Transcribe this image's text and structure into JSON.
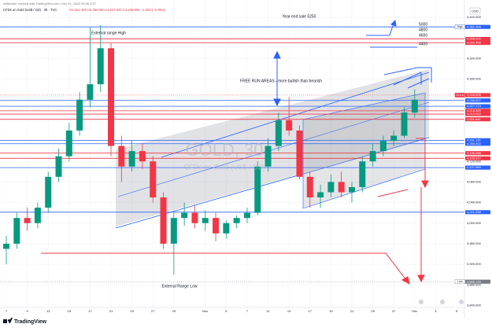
{
  "chart_data": {
    "type": "candlestick",
    "header": "szflarbahr created with TradingView.com, Dec 01, 2025 09:38 UTC",
    "symbol_line": "CFDs on Gold (US$ / OZ) · 30 · TVC",
    "ohlc_line": "O4,251.400 H4,256.050 L4,247.830 C4,248.895 −2.564 (−0.06%)",
    "watermark": "GOLD, 30",
    "watermark_sub": "CFDs on Gold (US$ / OZ)",
    "currency": "USD",
    "brand": "TradingView",
    "annotations": {
      "year_end": "Year end sale 5250",
      "t5000": "5000",
      "t4800": "4800",
      "t4600": "4600",
      "t4400": "4400",
      "range_high": "External range High",
      "free_run": "FREE RUN AREAS - more bullish than bearish",
      "range_low": "External Range Low"
    },
    "categories": [
      "7",
      null,
      "9",
      null,
      "13",
      null,
      "15",
      null,
      "17",
      null,
      "21",
      null,
      "23",
      null,
      "27",
      null,
      "29",
      null,
      null,
      "Nov",
      null,
      "5",
      null,
      "7",
      null,
      "11",
      null,
      "13",
      null,
      "17",
      null,
      "19",
      null,
      "21",
      null,
      "25",
      null,
      "27",
      null,
      "Dec",
      null,
      "3",
      null,
      "5"
    ],
    "open": [
      3950,
      3960,
      4010,
      4000,
      4030,
      4090,
      4130,
      4180,
      4240,
      4270,
      4340,
      4150,
      4110,
      4140,
      4120,
      4050,
      3960,
      4010,
      4020,
      4000,
      4010,
      3980,
      4000,
      4010,
      4020,
      4110,
      4150,
      4200,
      4180,
      4090,
      4050,
      4060,
      4080,
      4060,
      4070,
      4120,
      4140,
      4160,
      4170,
      4215,
      null,
      null,
      null,
      null
    ],
    "high": [
      3975,
      4020,
      4030,
      4040,
      4100,
      4145,
      4195,
      4255,
      4380,
      4385,
      4350,
      4170,
      4160,
      4155,
      4130,
      4060,
      4020,
      4040,
      4035,
      4025,
      4020,
      4005,
      4015,
      4030,
      4120,
      4165,
      4215,
      4245,
      4190,
      4100,
      4075,
      4095,
      4100,
      4080,
      4130,
      4155,
      4170,
      4180,
      4225,
      4260,
      null,
      null,
      null,
      null
    ],
    "low": [
      3920,
      3950,
      3985,
      3990,
      4020,
      4080,
      4120,
      4170,
      4225,
      4255,
      4130,
      4080,
      4100,
      4105,
      4040,
      3950,
      3900,
      3995,
      3990,
      3985,
      3965,
      3970,
      3990,
      4000,
      4015,
      4100,
      4140,
      4170,
      4085,
      4030,
      4030,
      4050,
      4050,
      4040,
      4060,
      4110,
      4130,
      4150,
      4165,
      4205,
      null,
      null,
      null,
      null
    ],
    "close": [
      3960,
      4010,
      4000,
      4030,
      4090,
      4130,
      4180,
      4240,
      4270,
      4340,
      4150,
      4110,
      4140,
      4120,
      4050,
      3960,
      4010,
      4020,
      4000,
      4010,
      3980,
      4000,
      4010,
      4020,
      4110,
      4150,
      4200,
      4180,
      4090,
      4050,
      4060,
      4080,
      4060,
      4070,
      4120,
      4140,
      4160,
      4170,
      4215,
      4240,
      null,
      null,
      null,
      null
    ],
    "up_color": "#089981",
    "down_color": "#f23645",
    "ylim": [
      3836,
      4420
    ],
    "yticks": [
      {
        "value": 4400,
        "label": "4,400.000"
      },
      {
        "value": 4360,
        "label": "4,360.000"
      },
      {
        "value": 4320,
        "label": "4,320.000"
      },
      {
        "value": 4280,
        "label": "4,280.000"
      },
      {
        "value": 4240,
        "label": "4,240.000"
      },
      {
        "value": 4200,
        "label": "4,200.000"
      },
      {
        "value": 4160,
        "label": "4,160.000"
      },
      {
        "value": 4120,
        "label": "4,120.000"
      },
      {
        "value": 4080,
        "label": "4,080.000"
      },
      {
        "value": 4040,
        "label": "4,040.000"
      },
      {
        "value": 4000,
        "label": "4,000.000"
      },
      {
        "value": 3960,
        "label": "3,960.000"
      },
      {
        "value": 3920,
        "label": "3,920.000"
      },
      {
        "value": 3880,
        "label": "3,880.000"
      },
      {
        "value": 3840,
        "label": "3,840.000"
      }
    ],
    "grid": true,
    "levels": [
      {
        "value": 4381.484,
        "label": "4,381.484",
        "name": "High",
        "color": "#2962ff",
        "line": true
      },
      {
        "value": 4358.022,
        "label": "4,358.022",
        "color": "#f23645",
        "line": true
      },
      {
        "value": 4350.458,
        "label": "4,350.458",
        "color": "#f23645",
        "line": true
      },
      {
        "value": 4248.895,
        "label": "4,248.895",
        "name": "GOLD",
        "color": "#f23645",
        "line": false
      },
      {
        "value": 4238.507,
        "label": "4,238.507",
        "color": "#2962ff",
        "line": true
      },
      {
        "value": 4227.174,
        "label": "4,227.174",
        "color": "#2962ff",
        "line": true
      },
      {
        "value": 4218.369,
        "label": "4,218.369",
        "color": "#f23645",
        "line": true
      },
      {
        "value": 4212.022,
        "label": "4,212.022",
        "color": "#f23645",
        "line": true
      },
      {
        "value": 4201.841,
        "label": "4,201.841",
        "color": "#f23645",
        "line": true
      },
      {
        "value": 4161.115,
        "label": "4,161.115",
        "color": "#2962ff",
        "line": true
      },
      {
        "value": 4154.402,
        "label": "4,154.402",
        "color": "#2962ff",
        "line": true
      },
      {
        "value": 4136.088,
        "label": "4,136.088",
        "color": "#f23645",
        "line": true
      },
      {
        "value": 4125.977,
        "label": "4,125.977",
        "color": "#f23645",
        "line": true
      },
      {
        "value": 4107.969,
        "label": "4,107.969",
        "color": "#2962ff",
        "line": true
      },
      {
        "value": 4021.258,
        "label": "4,021.258",
        "color": "#2962ff",
        "line": true
      },
      {
        "value": 3886.139,
        "label": "3,886.139",
        "name": "Low",
        "color": "#787b86",
        "line": false
      }
    ]
  }
}
